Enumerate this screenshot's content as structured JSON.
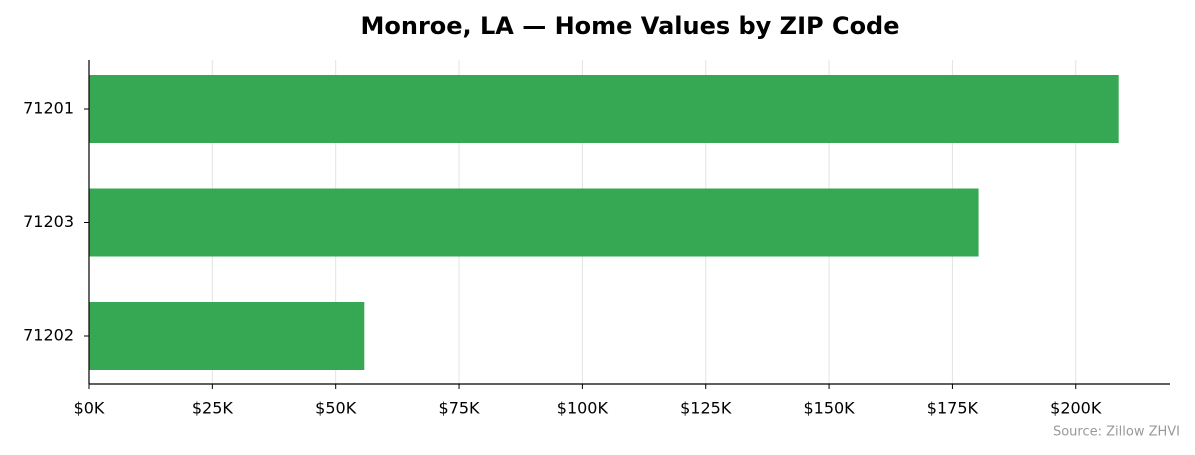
{
  "chart_data": {
    "type": "barh",
    "title": "Monroe, LA — Home Values by ZIP Code",
    "categories": [
      "71201",
      "71203",
      "71202"
    ],
    "values": [
      208700,
      180300,
      55800
    ],
    "color": "#36a854",
    "xlim": [
      0,
      219100
    ],
    "xticks": [
      {
        "value": 0,
        "label": "$0K"
      },
      {
        "value": 25000,
        "label": "$25K"
      },
      {
        "value": 50000,
        "label": "$50K"
      },
      {
        "value": 75000,
        "label": "$75K"
      },
      {
        "value": 100000,
        "label": "$100K"
      },
      {
        "value": 125000,
        "label": "$125K"
      },
      {
        "value": 150000,
        "label": "$150K"
      },
      {
        "value": 175000,
        "label": "$175K"
      },
      {
        "value": 200000,
        "label": "$200K"
      }
    ],
    "grid": true,
    "source": "Source: Zillow ZHVI"
  }
}
